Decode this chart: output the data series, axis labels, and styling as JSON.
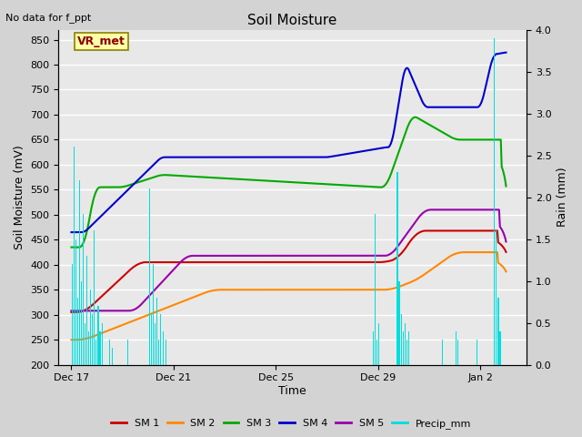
{
  "title": "Soil Moisture",
  "xlabel": "Time",
  "ylabel_left": "Soil Moisture (mV)",
  "ylabel_right": "Rain (mm)",
  "top_left_text": "No data for f_ppt",
  "vr_met_label": "VR_met",
  "ylim_left": [
    200,
    870
  ],
  "ylim_right": [
    0.0,
    4.0
  ],
  "yticks_left": [
    200,
    250,
    300,
    350,
    400,
    450,
    500,
    550,
    600,
    650,
    700,
    750,
    800,
    850
  ],
  "yticks_right": [
    0.0,
    0.5,
    1.0,
    1.5,
    2.0,
    2.5,
    3.0,
    3.5,
    4.0
  ],
  "x_tick_labels": [
    "Dec 17",
    "Dec 21",
    "Dec 25",
    "Dec 29",
    "Jan 2"
  ],
  "x_tick_positions": [
    0,
    4,
    8,
    12,
    16
  ],
  "xlim": [
    -0.5,
    17.8
  ],
  "background_color": "#d3d3d3",
  "plot_bg_color": "#e8e8e8",
  "grid_color": "#ffffff",
  "colors": {
    "SM1": "#cc0000",
    "SM2": "#ff8800",
    "SM3": "#00aa00",
    "SM4": "#0000cc",
    "SM5": "#9900aa",
    "Precip": "#00dddd"
  },
  "legend_labels": [
    "SM 1",
    "SM 2",
    "SM 3",
    "SM 4",
    "SM 5",
    "Precip_mm"
  ],
  "figsize": [
    6.4,
    4.8
  ],
  "dpi": 100
}
